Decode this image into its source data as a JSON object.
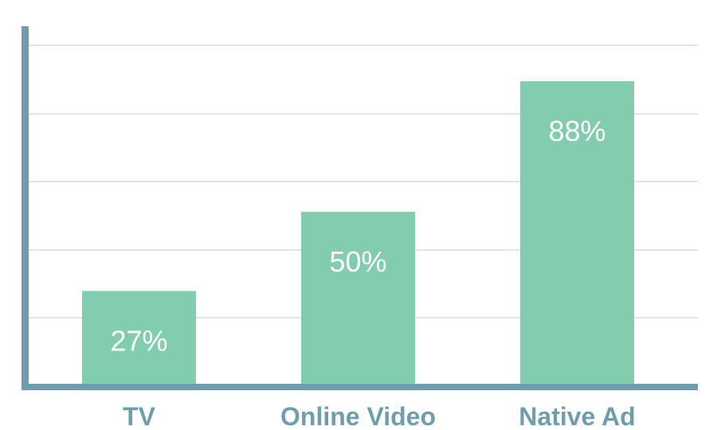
{
  "chart_data": {
    "type": "bar",
    "categories": [
      "TV",
      "Online Video",
      "Native Ad"
    ],
    "values": [
      27,
      50,
      88
    ],
    "data_labels": [
      "27%",
      "50%",
      "88%"
    ],
    "title": "",
    "xlabel": "",
    "ylabel": "",
    "ylim": [
      0,
      100
    ],
    "grid": true,
    "colors": {
      "bar": "#82ccaf",
      "axis": "#6e9eae",
      "grid": "#c8c8c8",
      "label": "#ffffff"
    }
  }
}
